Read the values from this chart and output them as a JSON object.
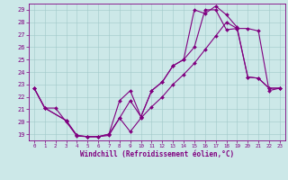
{
  "xlabel": "Windchill (Refroidissement éolien,°C)",
  "bg_color": "#cce8e8",
  "line_color": "#800080",
  "xlim": [
    -0.5,
    23.5
  ],
  "ylim": [
    18.5,
    29.5
  ],
  "xticks": [
    0,
    1,
    2,
    3,
    4,
    5,
    6,
    7,
    8,
    9,
    10,
    11,
    12,
    13,
    14,
    15,
    16,
    17,
    18,
    19,
    20,
    21,
    22,
    23
  ],
  "yticks": [
    19,
    20,
    21,
    22,
    23,
    24,
    25,
    26,
    27,
    28,
    29
  ],
  "grid_color": "#a0c8c8",
  "curve1_x": [
    0,
    1,
    3,
    4,
    5,
    6,
    7,
    8,
    9,
    10,
    11,
    12,
    13,
    14,
    15,
    16,
    17,
    18,
    19,
    20,
    21,
    22,
    23
  ],
  "curve1_y": [
    22.7,
    21.1,
    20.1,
    18.9,
    18.8,
    18.8,
    19.0,
    21.7,
    22.5,
    20.4,
    22.5,
    23.2,
    24.5,
    25.0,
    29.0,
    28.7,
    29.3,
    28.6,
    27.6,
    23.6,
    23.5,
    22.7,
    22.7
  ],
  "curve2_x": [
    0,
    1,
    3,
    4,
    5,
    6,
    7,
    8,
    9,
    10,
    11,
    12,
    13,
    14,
    15,
    16,
    17,
    18,
    19,
    20,
    21,
    22,
    23
  ],
  "curve2_y": [
    22.7,
    21.1,
    20.1,
    18.9,
    18.8,
    18.8,
    19.0,
    20.3,
    21.7,
    20.4,
    22.5,
    23.2,
    24.5,
    25.0,
    26.0,
    29.0,
    29.0,
    27.4,
    27.5,
    23.6,
    23.5,
    22.7,
    22.7
  ],
  "curve3_x": [
    0,
    1,
    2,
    3,
    4,
    5,
    6,
    7,
    8,
    9,
    10,
    11,
    12,
    13,
    14,
    15,
    16,
    17,
    18,
    19,
    20,
    21,
    22,
    23
  ],
  "curve3_y": [
    22.7,
    21.1,
    21.1,
    20.0,
    18.85,
    18.8,
    18.8,
    18.9,
    20.3,
    19.2,
    20.3,
    21.2,
    22.0,
    23.0,
    23.8,
    24.7,
    25.8,
    26.9,
    28.0,
    27.5,
    27.5,
    27.3,
    22.5,
    22.7
  ],
  "marker": "D",
  "markersize": 2.0,
  "linewidth": 0.8
}
